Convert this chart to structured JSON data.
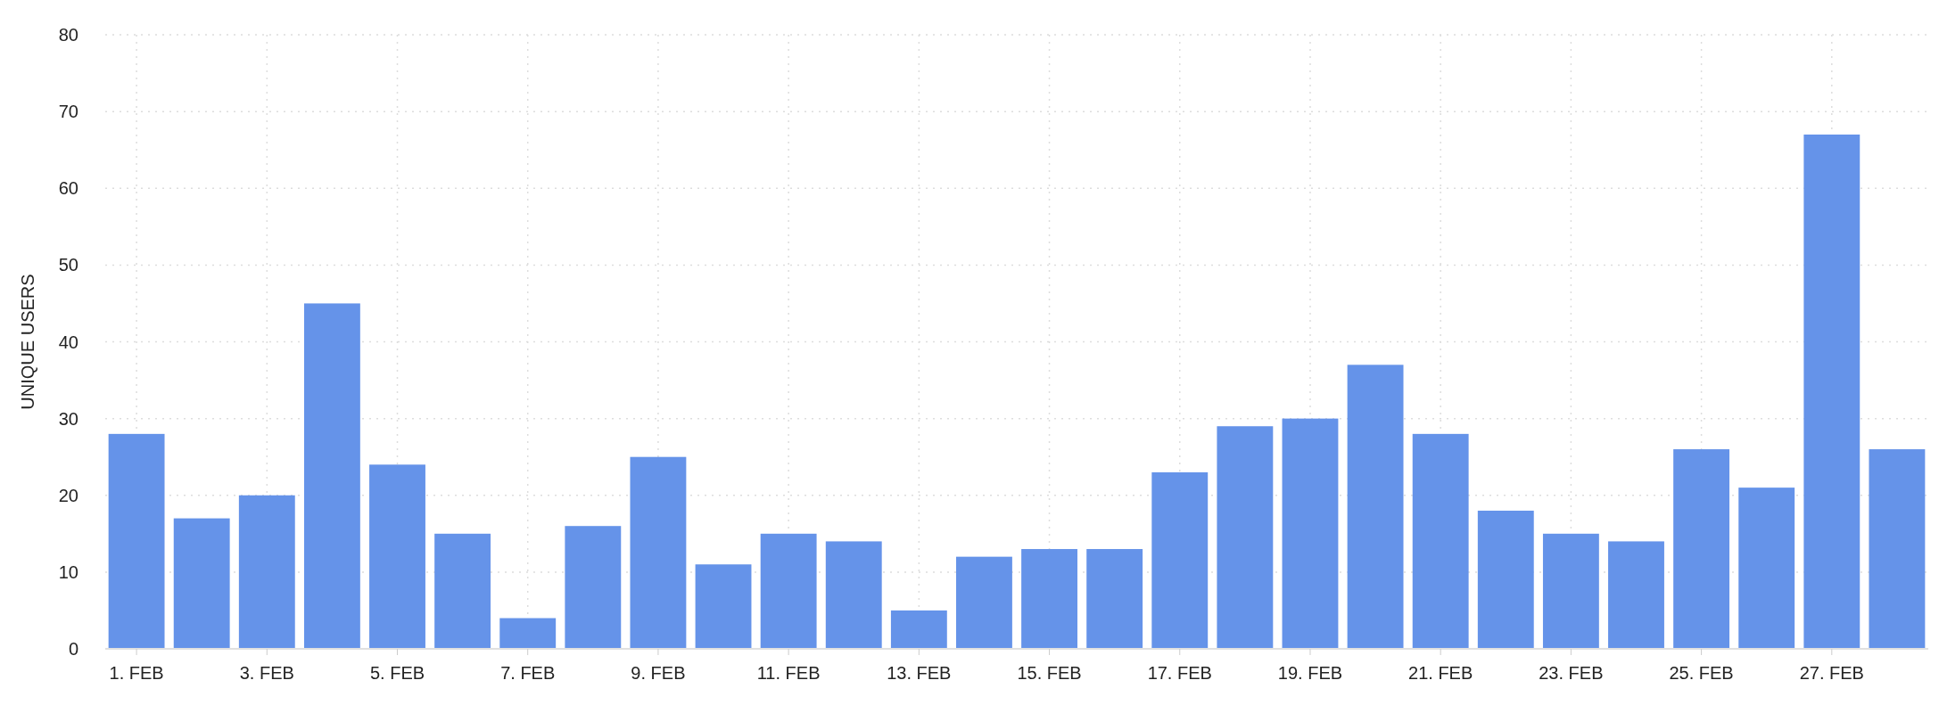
{
  "chart_data": {
    "type": "bar",
    "ylabel": "UNIQUE USERS",
    "categories": [
      "1. FEB",
      null,
      "3. FEB",
      null,
      "5. FEB",
      null,
      "7. FEB",
      null,
      "9. FEB",
      null,
      "11. FEB",
      null,
      "13. FEB",
      null,
      "15. FEB",
      null,
      "17. FEB",
      null,
      "19. FEB",
      null,
      "21. FEB",
      null,
      "23. FEB",
      null,
      "25. FEB",
      null,
      "27. FEB",
      null
    ],
    "values": [
      28,
      17,
      20,
      45,
      24,
      15,
      4,
      16,
      25,
      11,
      15,
      14,
      5,
      12,
      13,
      13,
      23,
      29,
      30,
      37,
      28,
      18,
      15,
      14,
      26,
      21,
      67,
      26
    ],
    "color": "#6593e9",
    "ylim": [
      0,
      80
    ],
    "yticks": [
      0,
      10,
      20,
      30,
      40,
      50,
      60,
      70,
      80
    ],
    "grid": true
  }
}
